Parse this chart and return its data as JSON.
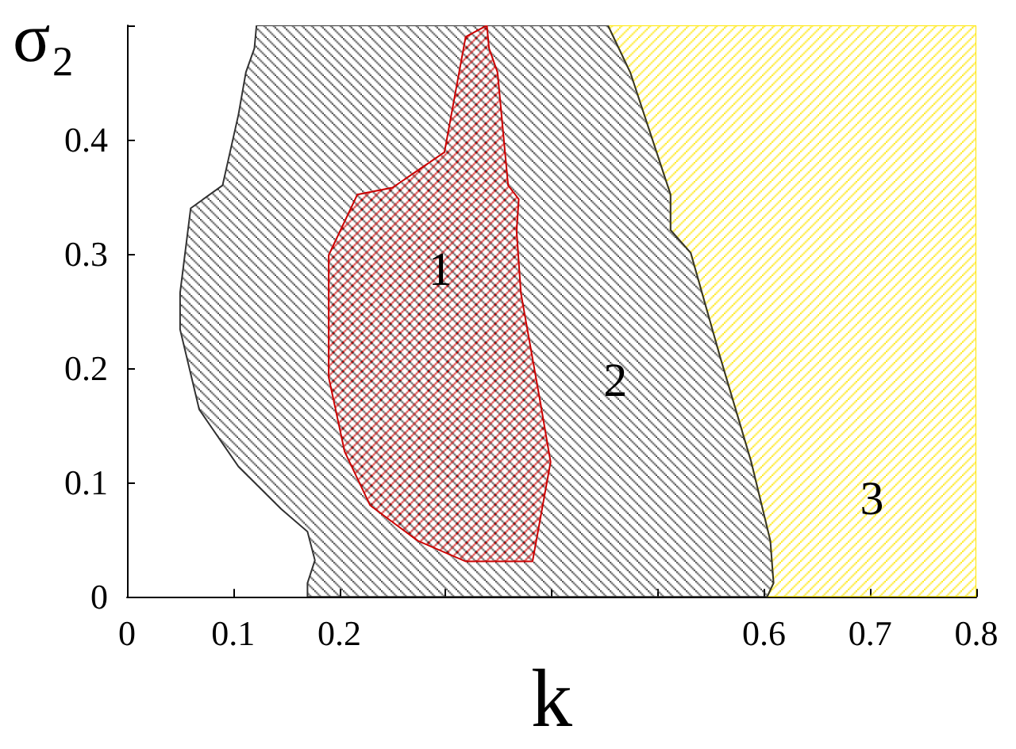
{
  "chart_data": {
    "type": "area",
    "xlabel": "k",
    "ylabel": "σ₂",
    "xlim": [
      0,
      0.8
    ],
    "ylim": [
      0,
      0.5
    ],
    "xticks": [
      0,
      0.1,
      0.2,
      {
        "value": 0.3,
        "label": null
      },
      {
        "value": 0.4,
        "label": null
      },
      {
        "value": 0.5,
        "label": null
      },
      0.6,
      0.7,
      0.8
    ],
    "yticks": [
      0,
      0.1,
      0.2,
      0.3,
      0.4,
      {
        "value": 0.5,
        "label": null
      }
    ],
    "series": [
      {
        "color": "#ffe600",
        "x": [
          0.453,
          0.474,
          0.512,
          0.512,
          0.531,
          0.559,
          0.588,
          0.606,
          0.609,
          0.603,
          0.8,
          0.8
        ],
        "values": [
          0.5,
          0.459,
          0.352,
          0.321,
          0.301,
          0.209,
          0.118,
          0.049,
          0.012,
          0,
          0,
          0.5
        ]
      },
      {
        "color": "#333333",
        "x": [
          0.17,
          0.17,
          0.177,
          0.17,
          0.145,
          0.105,
          0.068,
          0.05,
          0.05,
          0.06,
          0.09,
          0.105,
          0.112,
          0.12,
          0.122,
          0.453,
          0.474,
          0.512,
          0.512,
          0.531,
          0.559,
          0.588,
          0.606,
          0.609,
          0.603
        ],
        "values": [
          0,
          0.012,
          0.032,
          0.057,
          0.077,
          0.114,
          0.164,
          0.234,
          0.266,
          0.34,
          0.36,
          0.422,
          0.459,
          0.48,
          0.5,
          0.5,
          0.459,
          0.352,
          0.321,
          0.301,
          0.209,
          0.118,
          0.049,
          0.012,
          0
        ]
      },
      {
        "color": "#cc0000",
        "x": [
          0.339,
          0.341,
          0.349,
          0.359,
          0.369,
          0.367,
          0.371,
          0.389,
          0.399,
          0.382,
          0.319,
          0.274,
          0.229,
          0.205,
          0.19,
          0.19,
          0.217,
          0.25,
          0.299,
          0.319
        ],
        "values": [
          0.5,
          0.48,
          0.459,
          0.36,
          0.348,
          0.32,
          0.266,
          0.172,
          0.118,
          0.031,
          0.031,
          0.049,
          0.08,
          0.127,
          0.192,
          0.299,
          0.352,
          0.358,
          0.389,
          0.49
        ]
      }
    ],
    "annotations": [
      "1",
      "2",
      "3"
    ]
  }
}
